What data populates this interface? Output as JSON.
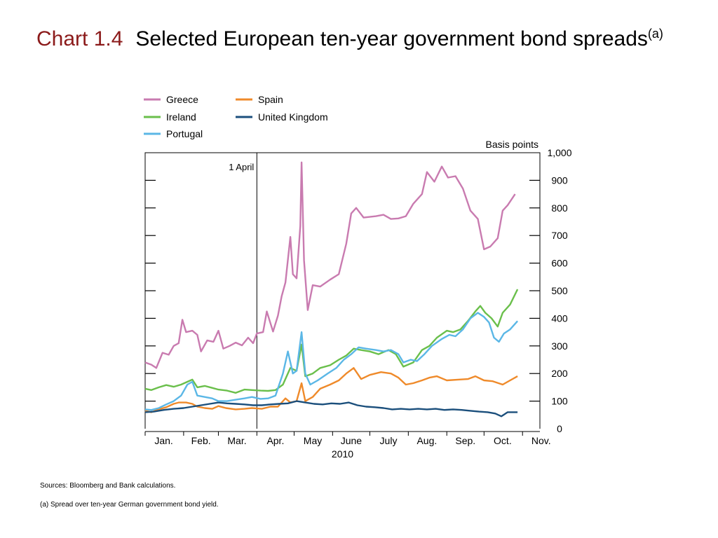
{
  "title": {
    "prefix": "Chart 1.4",
    "main": "Selected European ten-year government bond spreads",
    "footnote_marker": "(a)"
  },
  "footer": {
    "sources": "Sources:  Bloomberg and Bank calculations.",
    "note": "(a)  Spread over ten-year German government bond yield."
  },
  "chart_data": {
    "type": "line",
    "ylabel": "Basis points",
    "xlabel": "2010",
    "ylim": [
      0,
      1000
    ],
    "y_ticks": [
      0,
      100,
      200,
      300,
      400,
      500,
      600,
      700,
      800,
      900,
      1000
    ],
    "y_tick_labels": [
      "0",
      "100",
      "200",
      "300",
      "400",
      "500",
      "600",
      "700",
      "800",
      "900",
      "1,000"
    ],
    "months": [
      "Jan.",
      "Feb.",
      "Mar.",
      "Apr.",
      "May",
      "June",
      "July",
      "Aug.",
      "Sep.",
      "Oct.",
      "Nov."
    ],
    "xlim": [
      "2010-01-01",
      "2010-11-15"
    ],
    "annotation": {
      "label": "1 April",
      "x": "2010-04-01"
    },
    "grid": false,
    "legend_position": "top-left",
    "series": [
      {
        "name": "Greece",
        "color": "#c97bb0",
        "points": [
          [
            "2010-01-01",
            240
          ],
          [
            "2010-01-06",
            232
          ],
          [
            "2010-01-10",
            220
          ],
          [
            "2010-01-15",
            275
          ],
          [
            "2010-01-20",
            268
          ],
          [
            "2010-01-24",
            300
          ],
          [
            "2010-01-28",
            310
          ],
          [
            "2010-01-31",
            395
          ],
          [
            "2010-02-03",
            350
          ],
          [
            "2010-02-08",
            355
          ],
          [
            "2010-02-12",
            340
          ],
          [
            "2010-02-15",
            280
          ],
          [
            "2010-02-20",
            320
          ],
          [
            "2010-02-25",
            315
          ],
          [
            "2010-03-01",
            355
          ],
          [
            "2010-03-05",
            290
          ],
          [
            "2010-03-10",
            300
          ],
          [
            "2010-03-15",
            312
          ],
          [
            "2010-03-20",
            302
          ],
          [
            "2010-03-25",
            330
          ],
          [
            "2010-03-29",
            310
          ],
          [
            "2010-04-01",
            345
          ],
          [
            "2010-04-06",
            350
          ],
          [
            "2010-04-09",
            425
          ],
          [
            "2010-04-14",
            352
          ],
          [
            "2010-04-18",
            410
          ],
          [
            "2010-04-21",
            480
          ],
          [
            "2010-04-24",
            530
          ],
          [
            "2010-04-28",
            695
          ],
          [
            "2010-04-30",
            560
          ],
          [
            "2010-05-03",
            545
          ],
          [
            "2010-05-06",
            735
          ],
          [
            "2010-05-07",
            965
          ],
          [
            "2010-05-09",
            610
          ],
          [
            "2010-05-12",
            430
          ],
          [
            "2010-05-16",
            520
          ],
          [
            "2010-05-22",
            515
          ],
          [
            "2010-05-30",
            540
          ],
          [
            "2010-06-06",
            560
          ],
          [
            "2010-06-12",
            670
          ],
          [
            "2010-06-16",
            780
          ],
          [
            "2010-06-20",
            800
          ],
          [
            "2010-06-26",
            765
          ],
          [
            "2010-07-06",
            770
          ],
          [
            "2010-07-12",
            775
          ],
          [
            "2010-07-18",
            760
          ],
          [
            "2010-07-24",
            762
          ],
          [
            "2010-07-30",
            770
          ],
          [
            "2010-08-05",
            815
          ],
          [
            "2010-08-12",
            850
          ],
          [
            "2010-08-16",
            930
          ],
          [
            "2010-08-22",
            895
          ],
          [
            "2010-08-28",
            950
          ],
          [
            "2010-09-02",
            910
          ],
          [
            "2010-09-08",
            915
          ],
          [
            "2010-09-14",
            870
          ],
          [
            "2010-09-20",
            790
          ],
          [
            "2010-09-26",
            760
          ],
          [
            "2010-10-01",
            650
          ],
          [
            "2010-10-06",
            660
          ],
          [
            "2010-10-12",
            690
          ],
          [
            "2010-10-16",
            790
          ],
          [
            "2010-10-20",
            810
          ],
          [
            "2010-10-26",
            850
          ]
        ]
      },
      {
        "name": "Spain",
        "color": "#ef8a2a",
        "points": [
          [
            "2010-01-01",
            65
          ],
          [
            "2010-01-06",
            60
          ],
          [
            "2010-01-12",
            70
          ],
          [
            "2010-01-18",
            78
          ],
          [
            "2010-01-24",
            90
          ],
          [
            "2010-01-28",
            95
          ],
          [
            "2010-02-03",
            95
          ],
          [
            "2010-02-08",
            90
          ],
          [
            "2010-02-12",
            80
          ],
          [
            "2010-02-18",
            75
          ],
          [
            "2010-02-24",
            72
          ],
          [
            "2010-03-01",
            82
          ],
          [
            "2010-03-07",
            75
          ],
          [
            "2010-03-15",
            70
          ],
          [
            "2010-03-22",
            72
          ],
          [
            "2010-03-28",
            75
          ],
          [
            "2010-04-05",
            72
          ],
          [
            "2010-04-12",
            80
          ],
          [
            "2010-04-18",
            80
          ],
          [
            "2010-04-24",
            110
          ],
          [
            "2010-04-28",
            95
          ],
          [
            "2010-05-03",
            100
          ],
          [
            "2010-05-07",
            165
          ],
          [
            "2010-05-10",
            100
          ],
          [
            "2010-05-16",
            115
          ],
          [
            "2010-05-22",
            145
          ],
          [
            "2010-05-30",
            160
          ],
          [
            "2010-06-06",
            175
          ],
          [
            "2010-06-12",
            200
          ],
          [
            "2010-06-18",
            220
          ],
          [
            "2010-06-24",
            180
          ],
          [
            "2010-07-01",
            195
          ],
          [
            "2010-07-10",
            205
          ],
          [
            "2010-07-18",
            200
          ],
          [
            "2010-07-24",
            185
          ],
          [
            "2010-07-30",
            160
          ],
          [
            "2010-08-05",
            165
          ],
          [
            "2010-08-12",
            175
          ],
          [
            "2010-08-18",
            185
          ],
          [
            "2010-08-24",
            190
          ],
          [
            "2010-09-01",
            175
          ],
          [
            "2010-09-10",
            178
          ],
          [
            "2010-09-18",
            180
          ],
          [
            "2010-09-24",
            190
          ],
          [
            "2010-10-01",
            175
          ],
          [
            "2010-10-08",
            172
          ],
          [
            "2010-10-16",
            160
          ],
          [
            "2010-10-22",
            175
          ],
          [
            "2010-10-28",
            190
          ]
        ]
      },
      {
        "name": "Ireland",
        "color": "#6abf4b",
        "points": [
          [
            "2010-01-01",
            145
          ],
          [
            "2010-01-06",
            140
          ],
          [
            "2010-01-12",
            150
          ],
          [
            "2010-01-18",
            158
          ],
          [
            "2010-01-24",
            152
          ],
          [
            "2010-01-30",
            160
          ],
          [
            "2010-02-04",
            170
          ],
          [
            "2010-02-08",
            178
          ],
          [
            "2010-02-12",
            150
          ],
          [
            "2010-02-18",
            155
          ],
          [
            "2010-02-24",
            148
          ],
          [
            "2010-03-01",
            142
          ],
          [
            "2010-03-08",
            138
          ],
          [
            "2010-03-15",
            130
          ],
          [
            "2010-03-22",
            142
          ],
          [
            "2010-03-28",
            140
          ],
          [
            "2010-04-04",
            138
          ],
          [
            "2010-04-10",
            137
          ],
          [
            "2010-04-16",
            140
          ],
          [
            "2010-04-22",
            160
          ],
          [
            "2010-04-28",
            220
          ],
          [
            "2010-05-03",
            210
          ],
          [
            "2010-05-07",
            305
          ],
          [
            "2010-05-10",
            190
          ],
          [
            "2010-05-16",
            200
          ],
          [
            "2010-05-22",
            220
          ],
          [
            "2010-05-30",
            230
          ],
          [
            "2010-06-06",
            250
          ],
          [
            "2010-06-12",
            265
          ],
          [
            "2010-06-18",
            290
          ],
          [
            "2010-06-24",
            285
          ],
          [
            "2010-07-01",
            280
          ],
          [
            "2010-07-08",
            270
          ],
          [
            "2010-07-16",
            285
          ],
          [
            "2010-07-22",
            270
          ],
          [
            "2010-07-28",
            225
          ],
          [
            "2010-08-05",
            240
          ],
          [
            "2010-08-12",
            285
          ],
          [
            "2010-08-18",
            300
          ],
          [
            "2010-08-24",
            330
          ],
          [
            "2010-09-01",
            355
          ],
          [
            "2010-09-06",
            350
          ],
          [
            "2010-09-12",
            360
          ],
          [
            "2010-09-18",
            390
          ],
          [
            "2010-09-24",
            425
          ],
          [
            "2010-09-28",
            445
          ],
          [
            "2010-10-02",
            420
          ],
          [
            "2010-10-07",
            400
          ],
          [
            "2010-10-12",
            370
          ],
          [
            "2010-10-16",
            420
          ],
          [
            "2010-10-22",
            450
          ],
          [
            "2010-10-28",
            505
          ]
        ]
      },
      {
        "name": "United Kingdom",
        "color": "#1b4f7c",
        "points": [
          [
            "2010-01-01",
            60
          ],
          [
            "2010-01-08",
            62
          ],
          [
            "2010-01-16",
            68
          ],
          [
            "2010-01-24",
            72
          ],
          [
            "2010-02-01",
            75
          ],
          [
            "2010-02-08",
            80
          ],
          [
            "2010-02-15",
            85
          ],
          [
            "2010-02-22",
            90
          ],
          [
            "2010-03-01",
            95
          ],
          [
            "2010-03-08",
            92
          ],
          [
            "2010-03-15",
            90
          ],
          [
            "2010-03-22",
            88
          ],
          [
            "2010-03-29",
            85
          ],
          [
            "2010-04-05",
            85
          ],
          [
            "2010-04-12",
            88
          ],
          [
            "2010-04-19",
            90
          ],
          [
            "2010-04-26",
            92
          ],
          [
            "2010-05-03",
            100
          ],
          [
            "2010-05-10",
            95
          ],
          [
            "2010-05-17",
            90
          ],
          [
            "2010-05-24",
            88
          ],
          [
            "2010-05-31",
            92
          ],
          [
            "2010-06-07",
            90
          ],
          [
            "2010-06-14",
            95
          ],
          [
            "2010-06-21",
            85
          ],
          [
            "2010-06-28",
            80
          ],
          [
            "2010-07-05",
            78
          ],
          [
            "2010-07-12",
            75
          ],
          [
            "2010-07-19",
            70
          ],
          [
            "2010-07-26",
            72
          ],
          [
            "2010-08-02",
            70
          ],
          [
            "2010-08-09",
            72
          ],
          [
            "2010-08-16",
            70
          ],
          [
            "2010-08-23",
            72
          ],
          [
            "2010-08-30",
            68
          ],
          [
            "2010-09-06",
            70
          ],
          [
            "2010-09-13",
            68
          ],
          [
            "2010-09-20",
            65
          ],
          [
            "2010-09-27",
            62
          ],
          [
            "2010-10-04",
            60
          ],
          [
            "2010-10-10",
            55
          ],
          [
            "2010-10-15",
            45
          ],
          [
            "2010-10-20",
            60
          ],
          [
            "2010-10-28",
            60
          ]
        ]
      },
      {
        "name": "Portugal",
        "color": "#5bb7e6",
        "points": [
          [
            "2010-01-01",
            70
          ],
          [
            "2010-01-06",
            68
          ],
          [
            "2010-01-12",
            75
          ],
          [
            "2010-01-18",
            88
          ],
          [
            "2010-01-24",
            100
          ],
          [
            "2010-01-30",
            120
          ],
          [
            "2010-02-04",
            160
          ],
          [
            "2010-02-08",
            170
          ],
          [
            "2010-02-12",
            120
          ],
          [
            "2010-02-18",
            115
          ],
          [
            "2010-02-24",
            110
          ],
          [
            "2010-03-01",
            100
          ],
          [
            "2010-03-08",
            100
          ],
          [
            "2010-03-15",
            105
          ],
          [
            "2010-03-22",
            110
          ],
          [
            "2010-03-28",
            115
          ],
          [
            "2010-04-04",
            108
          ],
          [
            "2010-04-10",
            110
          ],
          [
            "2010-04-16",
            120
          ],
          [
            "2010-04-22",
            200
          ],
          [
            "2010-04-26",
            280
          ],
          [
            "2010-04-30",
            200
          ],
          [
            "2010-05-03",
            210
          ],
          [
            "2010-05-07",
            350
          ],
          [
            "2010-05-10",
            200
          ],
          [
            "2010-05-14",
            160
          ],
          [
            "2010-05-20",
            175
          ],
          [
            "2010-05-28",
            200
          ],
          [
            "2010-06-04",
            220
          ],
          [
            "2010-06-10",
            250
          ],
          [
            "2010-06-16",
            270
          ],
          [
            "2010-06-22",
            295
          ],
          [
            "2010-06-28",
            290
          ],
          [
            "2010-07-06",
            285
          ],
          [
            "2010-07-12",
            280
          ],
          [
            "2010-07-18",
            285
          ],
          [
            "2010-07-24",
            270
          ],
          [
            "2010-07-28",
            240
          ],
          [
            "2010-08-03",
            250
          ],
          [
            "2010-08-08",
            245
          ],
          [
            "2010-08-14",
            270
          ],
          [
            "2010-08-20",
            300
          ],
          [
            "2010-08-28",
            325
          ],
          [
            "2010-09-03",
            340
          ],
          [
            "2010-09-08",
            335
          ],
          [
            "2010-09-14",
            360
          ],
          [
            "2010-09-20",
            400
          ],
          [
            "2010-09-26",
            420
          ],
          [
            "2010-10-01",
            405
          ],
          [
            "2010-10-05",
            385
          ],
          [
            "2010-10-09",
            330
          ],
          [
            "2010-10-13",
            315
          ],
          [
            "2010-10-17",
            345
          ],
          [
            "2010-10-22",
            360
          ],
          [
            "2010-10-28",
            390
          ]
        ]
      }
    ]
  }
}
